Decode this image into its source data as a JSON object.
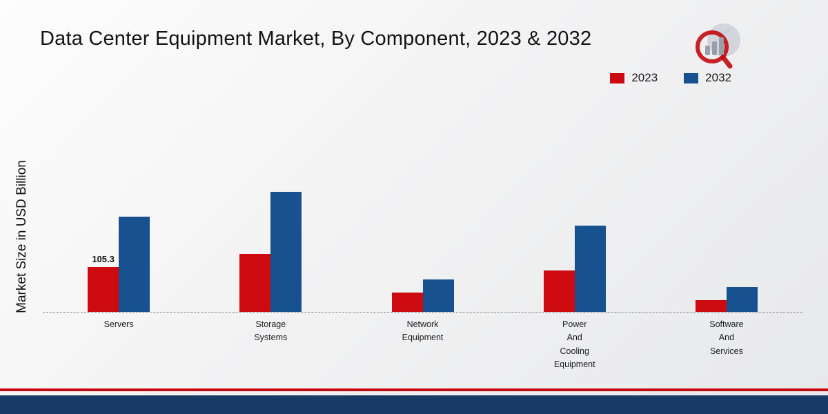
{
  "title": "Data Center Equipment Market, By Component, 2023 & 2032",
  "ylabel": "Market Size in USD Billion",
  "colors": {
    "series_2023": "#cc0a10",
    "series_2032": "#17518f",
    "footer_red": "#c00a0f",
    "footer_navy": "#173a66"
  },
  "legend": {
    "position": "top-right",
    "items": [
      {
        "label": "2023",
        "color": "#cc0a10"
      },
      {
        "label": "2032",
        "color": "#17518f"
      }
    ]
  },
  "chart_data": {
    "type": "bar",
    "title": "Data Center Equipment Market, By Component, 2023 & 2032",
    "categories": [
      "Servers",
      "Storage Systems",
      "Network Equipment",
      "Power And Cooling Equipment",
      "Software And Services"
    ],
    "series": [
      {
        "name": "2023",
        "color": "#cc0a10",
        "values": [
          105.3,
          136,
          45,
          96,
          28
        ]
      },
      {
        "name": "2032",
        "color": "#17518f",
        "values": [
          222,
          280,
          76,
          202,
          58
        ]
      }
    ],
    "xlabel": "",
    "ylabel": "Market Size in USD Billion",
    "ylim": [
      0,
      300
    ],
    "grid": false,
    "legend_position": "top-right",
    "annotations": [
      {
        "series_index": 0,
        "category_index": 0,
        "text": "105.3"
      }
    ],
    "baseline_style": "dashed"
  },
  "branding": {
    "logo": "bar-chart-magnifier-logo"
  }
}
